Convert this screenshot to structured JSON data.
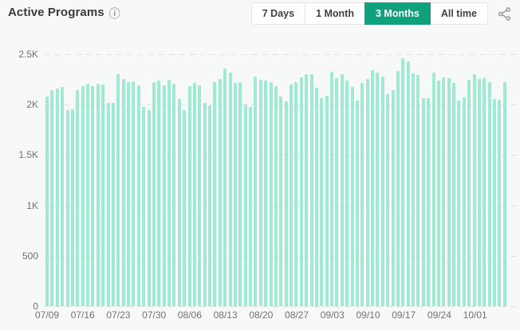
{
  "header": {
    "title": "Active Programs",
    "info_icon": "ⓘ"
  },
  "toolbar": {
    "ranges": [
      {
        "label": "7 Days",
        "selected": false
      },
      {
        "label": "1 Month",
        "selected": false
      },
      {
        "label": "3 Months",
        "selected": true
      },
      {
        "label": "All time",
        "selected": false
      }
    ],
    "selected_range": "3 Months",
    "share_icon": "share-alt"
  },
  "colors": {
    "accent_green": "#0fa17b",
    "bar_fill": "#a0ead4",
    "page_background": "#f7f8f8",
    "grid_line": "#e2e4e4",
    "axis_text": "#6f7173",
    "title_text": "#3a3a3a"
  },
  "chart_data": {
    "type": "bar",
    "title": "Active Programs",
    "xlabel": "",
    "ylabel": "",
    "ylim": [
      0,
      2500
    ],
    "grid": "horizontal-dashed",
    "legend": "none",
    "y_ticks": [
      0,
      500,
      1000,
      1500,
      2000,
      2500
    ],
    "y_tick_labels": [
      "0",
      "500",
      "1K",
      "1.5K",
      "2K",
      "2.5K"
    ],
    "x_tick_labels": [
      "07/09",
      "07/16",
      "07/23",
      "07/30",
      "08/06",
      "08/13",
      "08/20",
      "08/27",
      "09/03",
      "09/10",
      "09/17",
      "09/24",
      "10/01"
    ],
    "x_tick_every_n_bars": 7,
    "granularity": "daily",
    "values": [
      2080,
      2145,
      2160,
      2175,
      1945,
      1955,
      2145,
      2185,
      2205,
      2185,
      2205,
      2200,
      2015,
      2015,
      2300,
      2255,
      2225,
      2230,
      2190,
      1975,
      1945,
      2225,
      2240,
      2190,
      2245,
      2205,
      2055,
      1945,
      2185,
      2215,
      2190,
      2015,
      1995,
      2225,
      2255,
      2360,
      2320,
      2215,
      2225,
      2000,
      1975,
      2280,
      2245,
      2240,
      2225,
      2185,
      2080,
      2035,
      2200,
      2225,
      2270,
      2305,
      2305,
      2170,
      2065,
      2090,
      2325,
      2265,
      2305,
      2240,
      2175,
      2040,
      2215,
      2255,
      2340,
      2320,
      2280,
      2105,
      2145,
      2335,
      2460,
      2430,
      2310,
      2295,
      2065,
      2065,
      2320,
      2240,
      2270,
      2265,
      2215,
      2040,
      2070,
      2245,
      2300,
      2255,
      2265,
      2225,
      2055,
      2050,
      2225
    ]
  }
}
